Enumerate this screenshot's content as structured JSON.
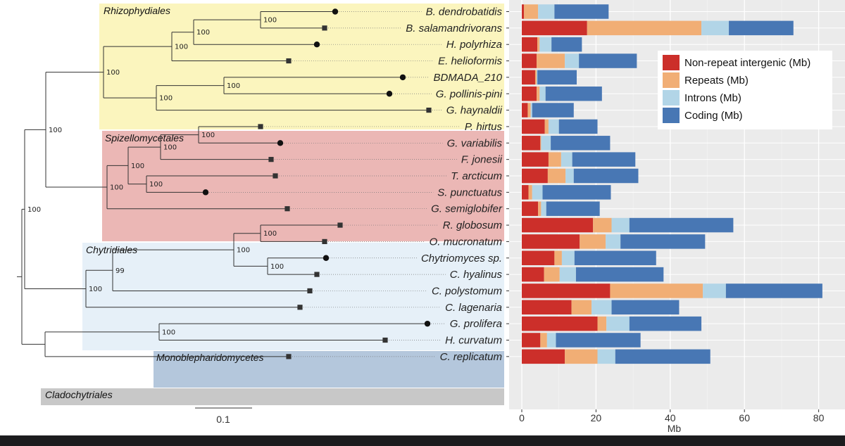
{
  "chart_data": [
    {
      "type": "phylogenetic-tree",
      "scale_bar_label": "0.1",
      "clades": [
        {
          "name": "Rhizophydiales",
          "color": "#fbf5be"
        },
        {
          "name": "Spizellomycetales",
          "color": "#ebb7b5"
        },
        {
          "name": "Chytridiales",
          "color": "#e6f0f8"
        },
        {
          "name": "Monoblepharidomycetes",
          "color": "#b4c7dc"
        },
        {
          "name": "Cladochytriales",
          "color": "#c8c8c8"
        }
      ],
      "bootstrap_values": [
        "100",
        "100",
        "100",
        "100",
        "100",
        "100",
        "100",
        "100",
        "100",
        "100",
        "100",
        "100",
        "100",
        "100",
        "100",
        "99",
        "100",
        "100",
        "100"
      ],
      "taxa": [
        {
          "name": "B. dendrobatidis",
          "marker": "circle"
        },
        {
          "name": "B. salamandrivorans",
          "marker": "square"
        },
        {
          "name": "H. polyrhiza",
          "marker": "circle"
        },
        {
          "name": "E. helioformis",
          "marker": "square"
        },
        {
          "name": "BDMADA_210",
          "marker": "circle"
        },
        {
          "name": "G. pollinis-pini",
          "marker": "circle"
        },
        {
          "name": "G. haynaldii",
          "marker": "square"
        },
        {
          "name": "P. hirtus",
          "marker": "square"
        },
        {
          "name": "G. variabilis",
          "marker": "circle"
        },
        {
          "name": "F. jonesii",
          "marker": "square"
        },
        {
          "name": "T. arcticum",
          "marker": "square"
        },
        {
          "name": "S. punctuatus",
          "marker": "circle"
        },
        {
          "name": "G. semiglobifer",
          "marker": "square"
        },
        {
          "name": "R. globosum",
          "marker": "square"
        },
        {
          "name": "O. mucronatum",
          "marker": "square"
        },
        {
          "name": "Chytriomyces sp.",
          "marker": "circle"
        },
        {
          "name": "C. hyalinus",
          "marker": "square"
        },
        {
          "name": "C. polystomum",
          "marker": "square"
        },
        {
          "name": "C. lagenaria",
          "marker": "square"
        },
        {
          "name": "G. prolifera",
          "marker": "circle"
        },
        {
          "name": "H. curvatum",
          "marker": "square"
        },
        {
          "name": "C. replicatum",
          "marker": "square"
        }
      ]
    },
    {
      "type": "bar",
      "stacked": true,
      "orientation": "horizontal",
      "xlabel": "Mb",
      "xlim": [
        0,
        83
      ],
      "xticks": [
        0,
        20,
        40,
        60,
        80
      ],
      "grid": true,
      "legend_position": "top-right",
      "categories": [
        "B. dendrobatidis",
        "B. salamandrivorans",
        "H. polyrhiza",
        "E. helioformis",
        "BDMADA_210",
        "G. pollinis-pini",
        "G. haynaldii",
        "P. hirtus",
        "G. variabilis",
        "F. jonesii",
        "T. arcticum",
        "S. punctuatus",
        "G. semiglobifer",
        "R. globosum",
        "O. mucronatum",
        "Chytriomyces sp.",
        "C. hyalinus",
        "C. polystomum",
        "C. lagenaria",
        "G. prolifera",
        "H. curvatum",
        "C. replicatum"
      ],
      "series": [
        {
          "name": "Non-repeat intergenic (Mb)",
          "color": "#cc2f2a",
          "values": [
            0.6,
            17.6,
            4.2,
            4.0,
            3.6,
            4.0,
            1.6,
            6.2,
            5.0,
            7.2,
            7.0,
            1.8,
            4.4,
            19.2,
            15.6,
            8.8,
            6.0,
            23.8,
            13.4,
            20.4,
            5.0,
            11.6
          ]
        },
        {
          "name": "Repeats (Mb)",
          "color": "#f1ae75",
          "values": [
            3.8,
            30.8,
            0.6,
            7.6,
            0.4,
            0.8,
            0.8,
            1.0,
            0.2,
            3.4,
            4.8,
            1.0,
            0.8,
            5.0,
            7.0,
            2.0,
            4.2,
            25.0,
            5.4,
            2.4,
            1.8,
            8.8
          ]
        },
        {
          "name": "Introns (Mb)",
          "color": "#b2d5e7",
          "values": [
            4.4,
            7.4,
            3.2,
            3.8,
            0.2,
            1.6,
            0.4,
            2.8,
            2.6,
            3.0,
            2.2,
            2.8,
            1.4,
            4.8,
            4.0,
            3.4,
            4.4,
            6.2,
            5.4,
            6.2,
            2.4,
            4.8
          ]
        },
        {
          "name": "Coding (Mb)",
          "color": "#4877b4",
          "values": [
            14.6,
            17.4,
            8.2,
            15.6,
            10.6,
            15.2,
            11.2,
            10.4,
            16.0,
            17.0,
            17.4,
            18.4,
            14.4,
            28.0,
            22.8,
            22.0,
            23.6,
            26.0,
            18.2,
            19.4,
            22.8,
            25.6
          ]
        }
      ]
    }
  ]
}
